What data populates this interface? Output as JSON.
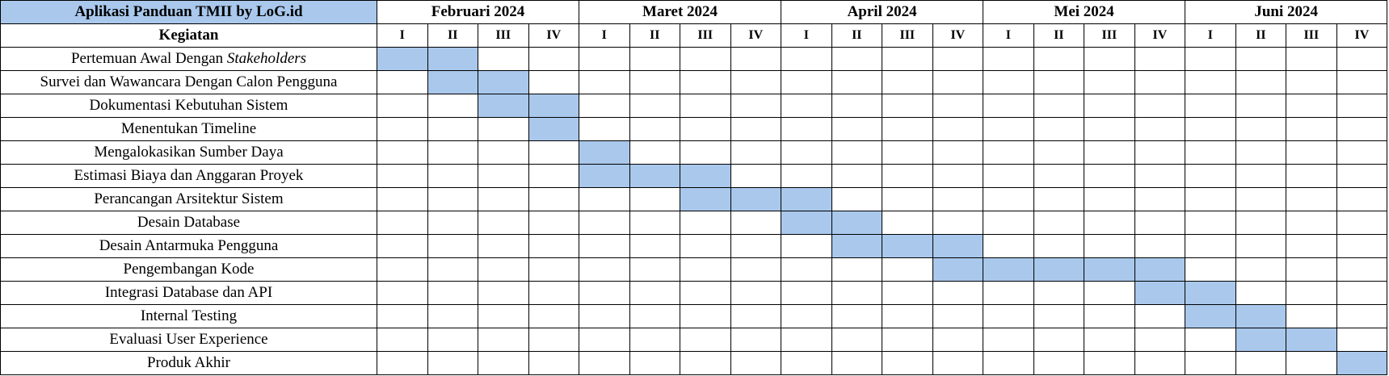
{
  "colors": {
    "accent": "#a9c8ec",
    "border": "#000000",
    "background": "#ffffff"
  },
  "chart_data": {
    "type": "table",
    "title": "Aplikasi Panduan TMII by LoG.id",
    "task_header": "Kegiatan",
    "months": [
      "Februari 2024",
      "Maret 2024",
      "April 2024",
      "Mei 2024",
      "Juni 2024"
    ],
    "weeks": [
      "I",
      "II",
      "III",
      "IV"
    ],
    "tasks": [
      {
        "name_parts": [
          {
            "text": "Pertemuan Awal Dengan "
          },
          {
            "text": "Stakeholders",
            "italic": true
          }
        ],
        "start": 0,
        "end": 1
      },
      {
        "name_parts": [
          {
            "text": "Survei dan Wawancara Dengan Calon Pengguna"
          }
        ],
        "start": 1,
        "end": 2
      },
      {
        "name_parts": [
          {
            "text": "Dokumentasi Kebutuhan Sistem"
          }
        ],
        "start": 2,
        "end": 3
      },
      {
        "name_parts": [
          {
            "text": "Menentukan Timeline"
          }
        ],
        "start": 3,
        "end": 3
      },
      {
        "name_parts": [
          {
            "text": "Mengalokasikan Sumber Daya"
          }
        ],
        "start": 4,
        "end": 4
      },
      {
        "name_parts": [
          {
            "text": "Estimasi Biaya dan Anggaran Proyek"
          }
        ],
        "start": 4,
        "end": 6
      },
      {
        "name_parts": [
          {
            "text": "Perancangan Arsitektur Sistem"
          }
        ],
        "start": 6,
        "end": 8
      },
      {
        "name_parts": [
          {
            "text": "Desain Database"
          }
        ],
        "start": 8,
        "end": 9
      },
      {
        "name_parts": [
          {
            "text": "Desain Antarmuka Pengguna"
          }
        ],
        "start": 9,
        "end": 11
      },
      {
        "name_parts": [
          {
            "text": "Pengembangan Kode"
          }
        ],
        "start": 11,
        "end": 15
      },
      {
        "name_parts": [
          {
            "text": "Integrasi Database dan API"
          }
        ],
        "start": 15,
        "end": 16
      },
      {
        "name_parts": [
          {
            "text": "Internal Testing"
          }
        ],
        "start": 16,
        "end": 17
      },
      {
        "name_parts": [
          {
            "text": "Evaluasi User Experience"
          }
        ],
        "start": 17,
        "end": 18
      },
      {
        "name_parts": [
          {
            "text": "Produk Akhir"
          }
        ],
        "start": 19,
        "end": 19
      }
    ]
  }
}
